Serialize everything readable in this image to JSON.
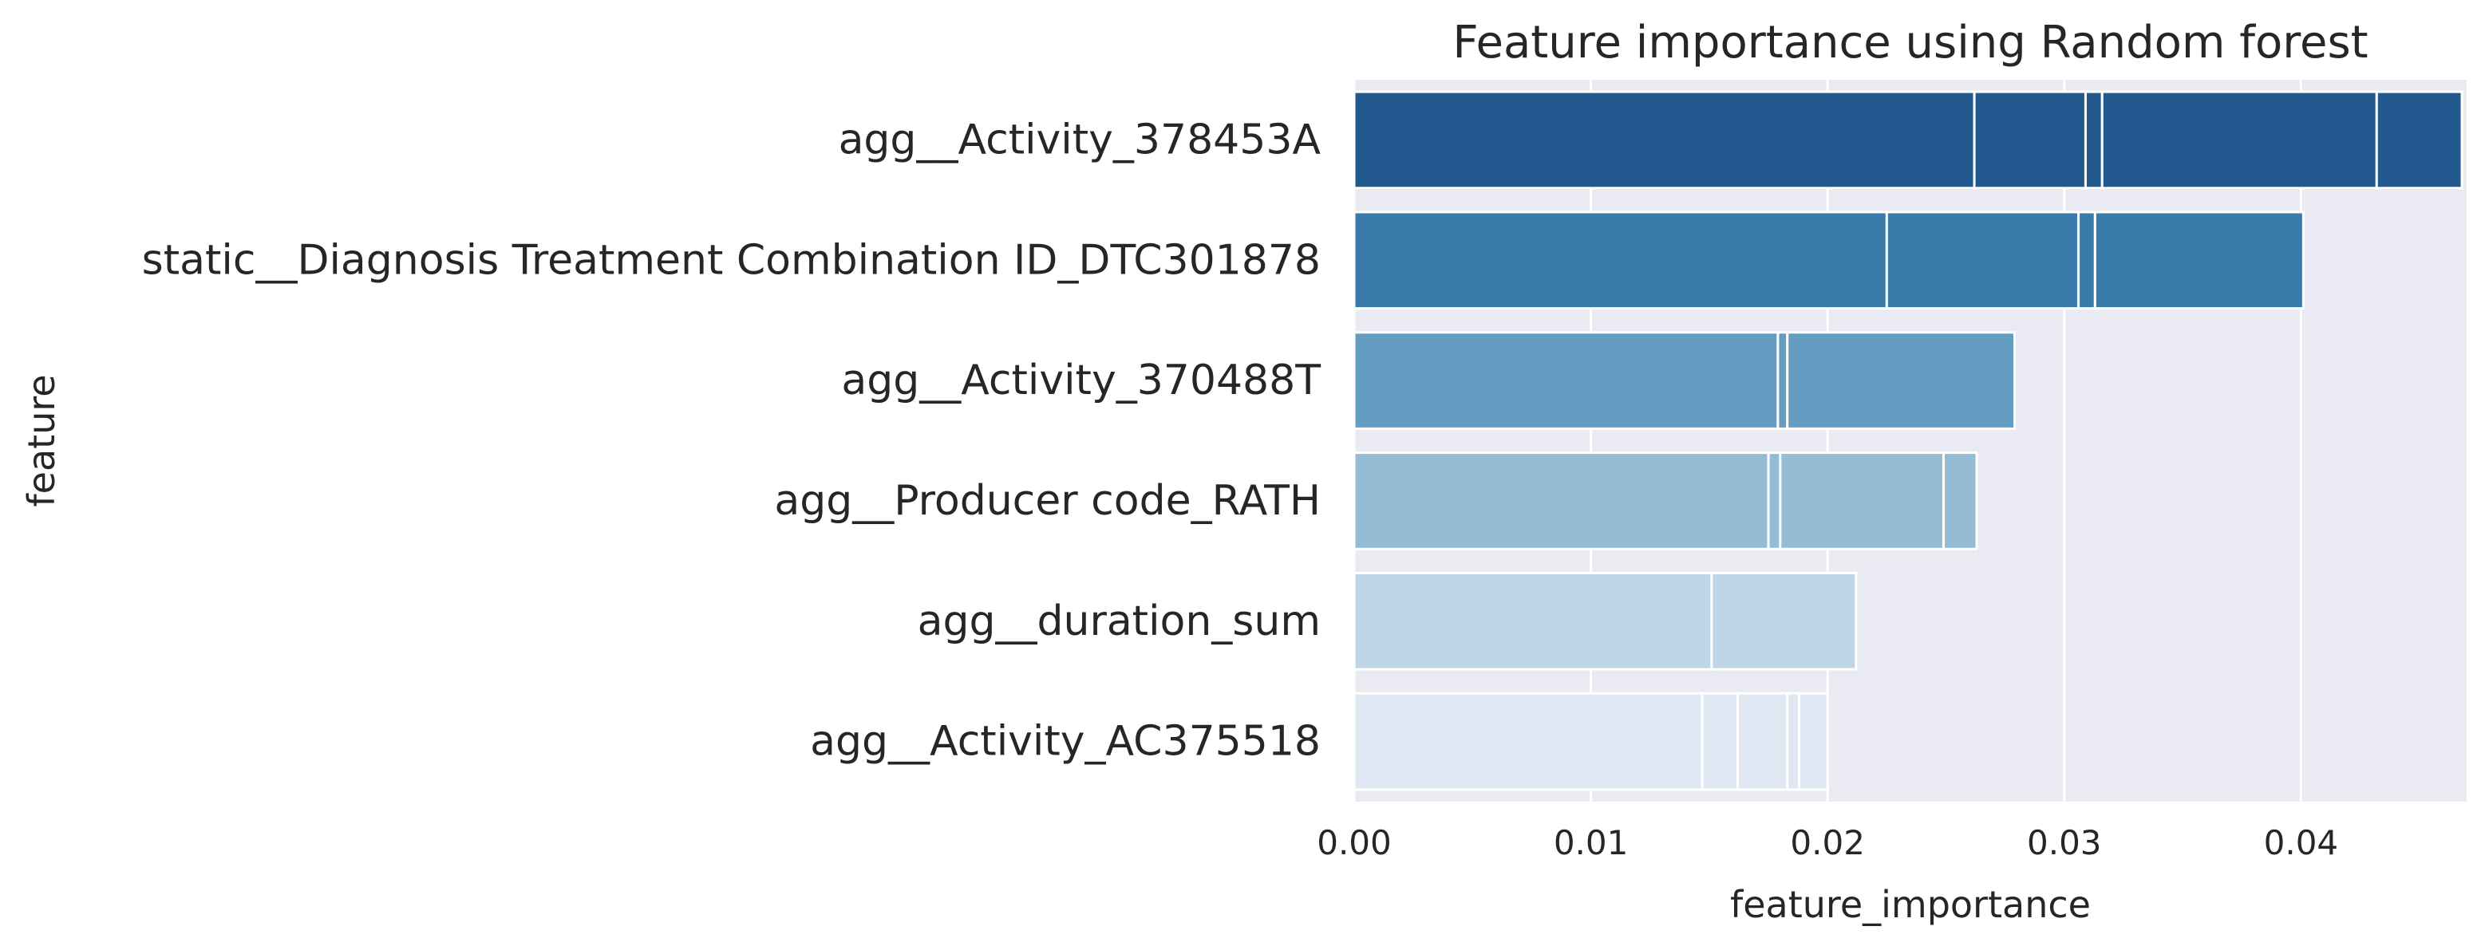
{
  "chart_data": {
    "type": "bar",
    "orientation": "horizontal",
    "title": "Feature importance using Random forest",
    "xlabel": "feature_importance",
    "ylabel": "feature",
    "xlim": [
      0,
      0.047
    ],
    "x_ticks": [
      "0.00",
      "0.01",
      "0.02",
      "0.03",
      "0.04"
    ],
    "x_tick_values": [
      0,
      0.01,
      0.02,
      0.03,
      0.04
    ],
    "grid": true,
    "background_color": "#EAEAF2",
    "grid_color": "#FFFFFF",
    "categories": [
      "agg__Activity_378453A",
      "static__Diagnosis Treatment Combination ID_DTC301878",
      "agg__Activity_370488T",
      "agg__Producer code_RATH",
      "agg__duration_sum",
      "agg__Activity_AC375518"
    ],
    "colors": [
      "#225A8F",
      "#3A7AAB",
      "#649CC2",
      "#94BCD4",
      "#C0D6E6",
      "#DFE8F2"
    ],
    "values": [
      0.0468,
      0.0401,
      0.0279,
      0.0263,
      0.0212,
      0.02
    ],
    "segments": [
      [
        0.0262,
        0.0309,
        0.0316,
        0.0432,
        0.0468
      ],
      [
        0.0225,
        0.0306,
        0.0313,
        0.0401
      ],
      [
        0.0179,
        0.0183,
        0.0279
      ],
      [
        0.0175,
        0.018,
        0.0249,
        0.0263
      ],
      [
        0.0151,
        0.0212
      ],
      [
        0.0147,
        0.0162,
        0.0183,
        0.0188,
        0.02
      ]
    ]
  }
}
